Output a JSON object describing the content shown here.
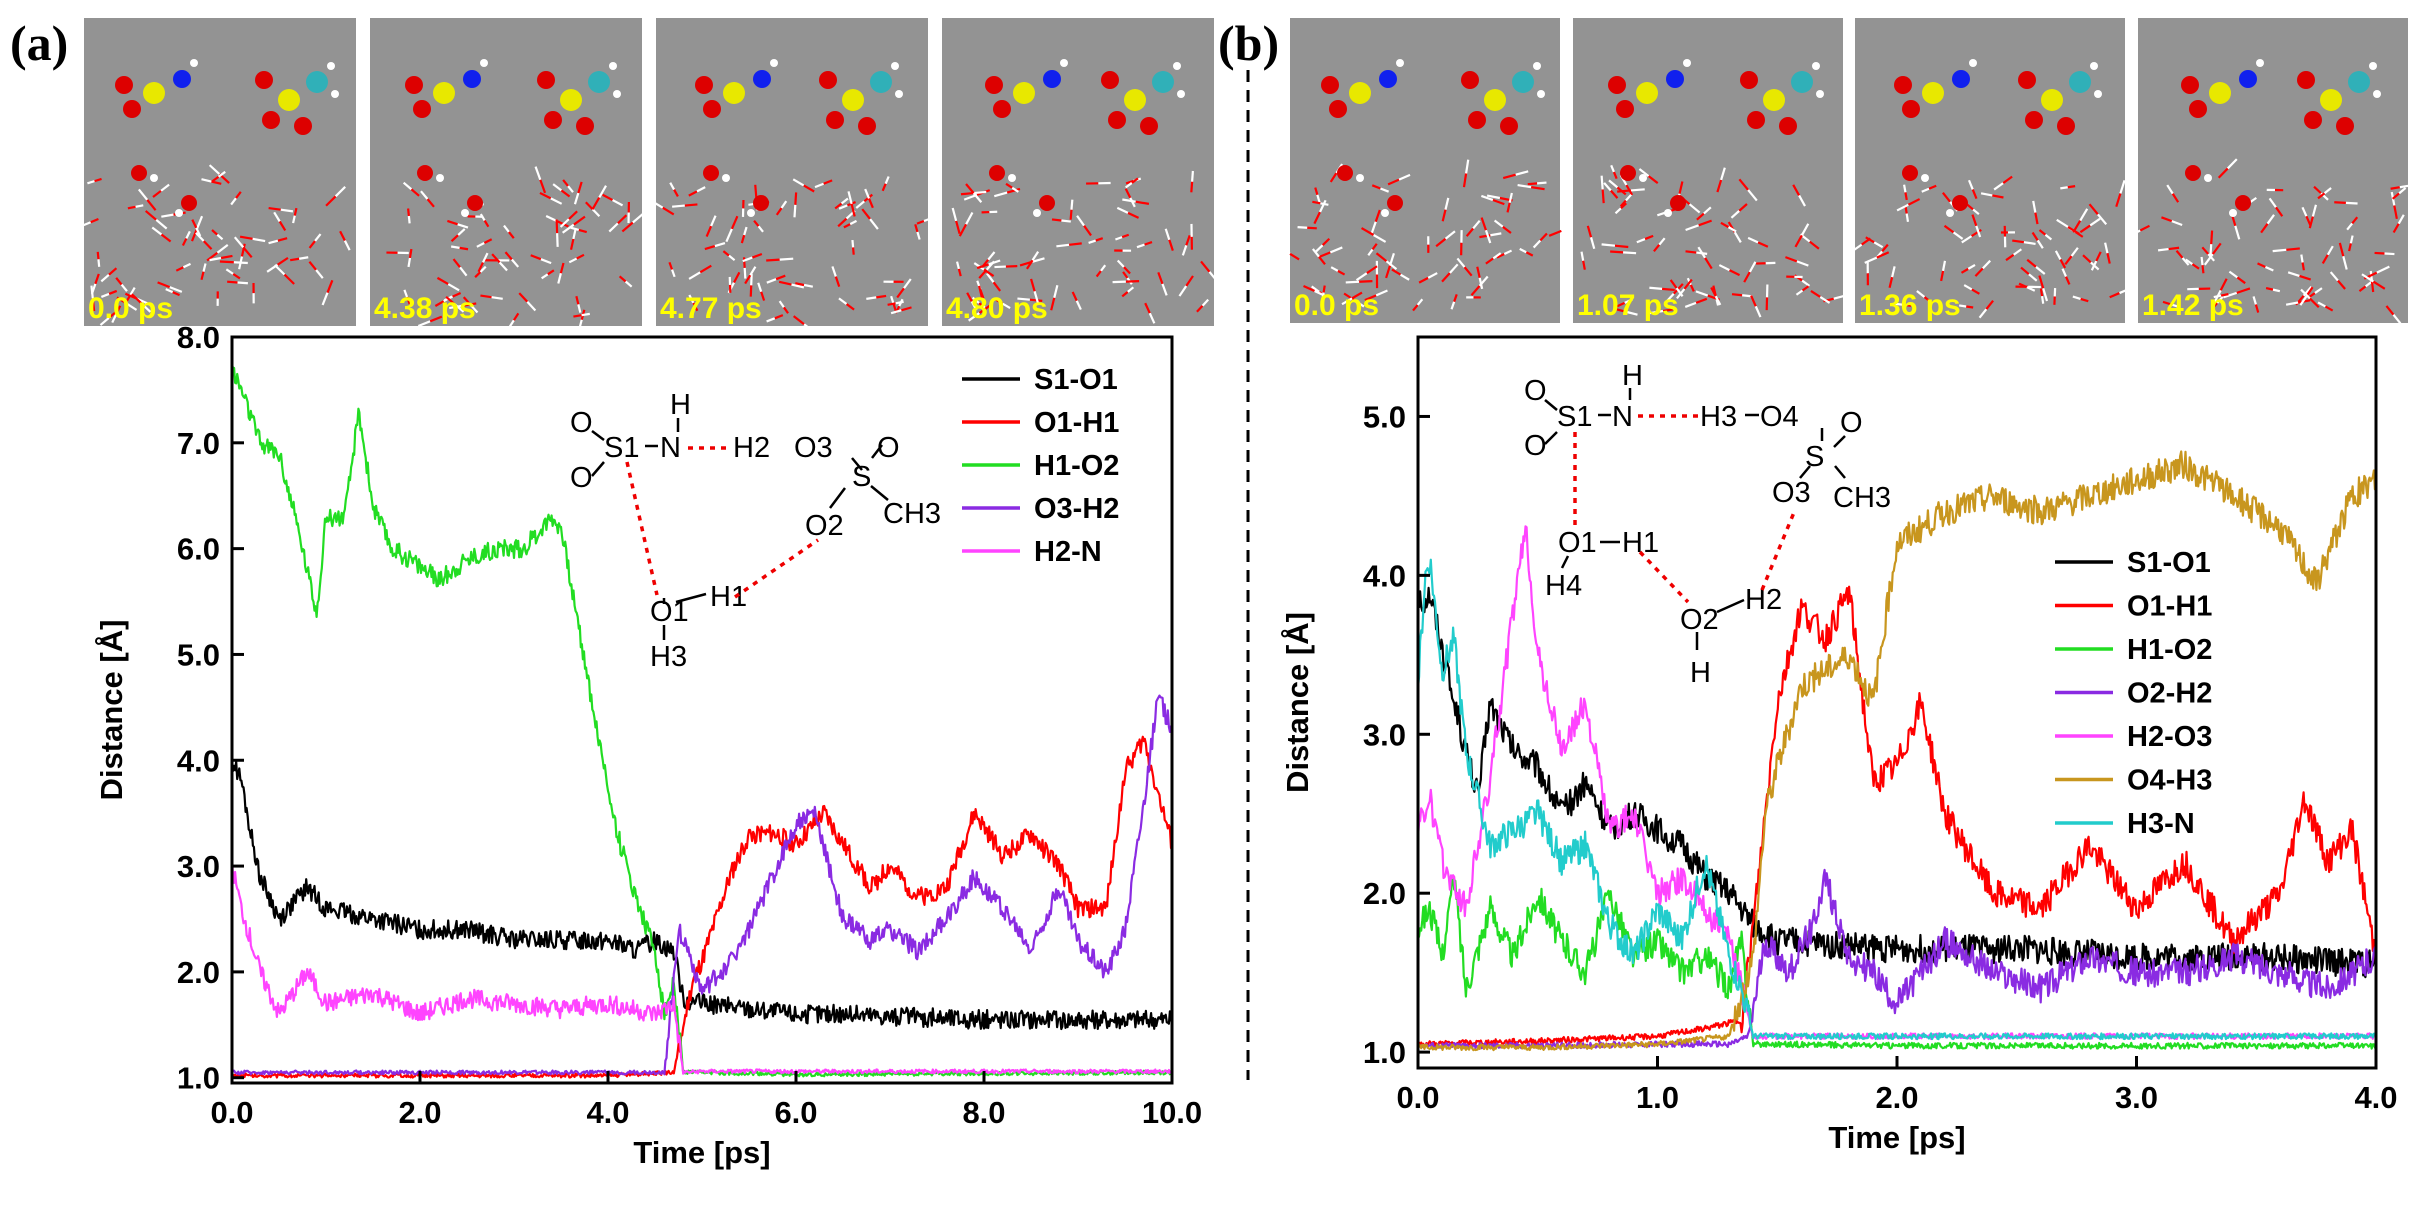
{
  "panel_a": {
    "letter": "(a)",
    "snapshots": [
      "0.0 ps",
      "4.38 ps",
      "4.77 ps",
      "4.80 ps"
    ],
    "scheme_labels": [
      "O",
      "O",
      "S1",
      "N",
      "H",
      "H2",
      "O3",
      "S",
      "O",
      "O2",
      "CH3",
      "O1",
      "H1",
      "H3"
    ]
  },
  "panel_b": {
    "letter": "(b)",
    "snapshots": [
      "0.0 ps",
      "1.07 ps",
      "1.36 ps",
      "1.42 ps"
    ],
    "scheme_labels": [
      "O",
      "O",
      "S1",
      "N",
      "H",
      "H3",
      "O4",
      "S",
      "O",
      "O3",
      "CH3",
      "O1",
      "H1",
      "H4",
      "O2",
      "H2",
      "H"
    ]
  },
  "colors": {
    "black": "#000000",
    "red": "#ff0000",
    "green": "#22dd22",
    "purple": "#8a2be2",
    "magenta": "#ff44ff",
    "gold": "#c8961e",
    "cyan": "#22cccc",
    "snapshot_bg": "#939393"
  },
  "chart_data": [
    {
      "type": "line",
      "title": "",
      "xlabel": "Time [ps]",
      "ylabel": "Distance [Å]",
      "xlim": [
        0,
        10
      ],
      "ylim": [
        0.95,
        8.0
      ],
      "xticks": [
        0,
        2,
        4,
        6,
        8,
        10
      ],
      "xtick_labels": [
        "0.0",
        "2.0",
        "4.0",
        "6.0",
        "8.0",
        "10.0"
      ],
      "yticks": [
        1,
        2,
        3,
        4,
        5,
        6,
        7,
        8
      ],
      "ytick_labels": [
        "1.0",
        "2.0",
        "3.0",
        "4.0",
        "5.0",
        "6.0",
        "7.0",
        "8.0"
      ],
      "legend_position": "top-right",
      "series": [
        {
          "name": "S1-O1",
          "color": "#000000",
          "x": [
            0,
            0.1,
            0.2,
            0.3,
            0.5,
            0.8,
            1.0,
            1.5,
            2.0,
            2.5,
            3.0,
            3.5,
            4.0,
            4.3,
            4.5,
            4.7,
            4.8,
            5.0,
            5.5,
            6.0,
            6.5,
            7.0,
            8.0,
            9.0,
            10.0
          ],
          "y": [
            4.0,
            3.8,
            3.3,
            2.9,
            2.5,
            2.8,
            2.6,
            2.5,
            2.4,
            2.4,
            2.3,
            2.3,
            2.3,
            2.2,
            2.3,
            2.2,
            1.75,
            1.7,
            1.65,
            1.6,
            1.6,
            1.58,
            1.55,
            1.55,
            1.55
          ]
        },
        {
          "name": "O1-H1",
          "color": "#ff0000",
          "x": [
            0,
            1,
            2,
            3,
            4,
            4.7,
            4.9,
            5.0,
            5.3,
            5.5,
            5.8,
            6.0,
            6.3,
            6.5,
            6.8,
            7.0,
            7.3,
            7.6,
            7.9,
            8.2,
            8.5,
            8.8,
            9.0,
            9.3,
            9.5,
            9.7,
            9.85,
            10.0
          ],
          "y": [
            1.02,
            1.02,
            1.02,
            1.02,
            1.02,
            1.05,
            1.9,
            2.1,
            2.9,
            3.3,
            3.3,
            3.2,
            3.5,
            3.2,
            2.8,
            3.0,
            2.7,
            2.8,
            3.5,
            3.1,
            3.3,
            3.0,
            2.6,
            2.6,
            3.9,
            4.2,
            3.7,
            3.2
          ]
        },
        {
          "name": "H1-O2",
          "color": "#22dd22",
          "x": [
            0,
            0.1,
            0.3,
            0.5,
            0.7,
            0.9,
            1.0,
            1.2,
            1.35,
            1.5,
            1.7,
            1.9,
            2.2,
            2.5,
            2.8,
            3.1,
            3.4,
            3.5,
            3.7,
            3.9,
            4.1,
            4.3,
            4.5,
            4.6,
            4.7,
            4.8,
            5.0,
            6.0,
            8.0,
            10.0
          ],
          "y": [
            7.7,
            7.5,
            7.0,
            6.9,
            6.2,
            5.4,
            6.3,
            6.3,
            7.3,
            6.4,
            6.0,
            5.9,
            5.7,
            5.9,
            6.0,
            6.0,
            6.3,
            6.2,
            5.2,
            4.2,
            3.3,
            2.7,
            2.2,
            1.6,
            1.9,
            1.05,
            1.05,
            1.03,
            1.04,
            1.05
          ]
        },
        {
          "name": "O3-H2",
          "color": "#8a2be2",
          "x": [
            0,
            2,
            4,
            4.6,
            4.75,
            4.85,
            5.0,
            5.3,
            5.5,
            5.8,
            6.0,
            6.2,
            6.5,
            6.8,
            7.0,
            7.3,
            7.6,
            7.9,
            8.2,
            8.5,
            8.8,
            9.0,
            9.3,
            9.5,
            9.7,
            9.85,
            10.0
          ],
          "y": [
            1.05,
            1.05,
            1.05,
            1.05,
            2.4,
            2.2,
            1.8,
            2.1,
            2.4,
            3.0,
            3.4,
            3.5,
            2.5,
            2.3,
            2.4,
            2.2,
            2.5,
            2.9,
            2.6,
            2.2,
            2.8,
            2.3,
            2.0,
            2.4,
            3.6,
            4.6,
            4.3
          ]
        },
        {
          "name": "H2-N",
          "color": "#ff44ff",
          "x": [
            0,
            0.1,
            0.3,
            0.5,
            0.8,
            1.0,
            1.5,
            2.0,
            2.5,
            3.0,
            3.5,
            4.0,
            4.5,
            4.7,
            4.8,
            5.0,
            6.0,
            8.0,
            10.0
          ],
          "y": [
            3.0,
            2.6,
            2.0,
            1.6,
            2.0,
            1.7,
            1.8,
            1.6,
            1.75,
            1.7,
            1.65,
            1.7,
            1.6,
            1.7,
            1.05,
            1.06,
            1.06,
            1.06,
            1.06
          ]
        }
      ]
    },
    {
      "type": "line",
      "title": "",
      "xlabel": "Time [ps]",
      "ylabel": "Distance [Å]",
      "xlim": [
        0,
        4
      ],
      "ylim": [
        0.9,
        5.5
      ],
      "xticks": [
        0,
        1,
        2,
        3,
        4
      ],
      "xtick_labels": [
        "0.0",
        "1.0",
        "2.0",
        "3.0",
        "4.0"
      ],
      "yticks": [
        1,
        2,
        3,
        4,
        5
      ],
      "ytick_labels": [
        "1.0",
        "2.0",
        "3.0",
        "4.0",
        "5.0"
      ],
      "legend_position": "center-right",
      "series": [
        {
          "name": "S1-O1",
          "color": "#000000",
          "x": [
            0,
            0.05,
            0.15,
            0.25,
            0.3,
            0.4,
            0.5,
            0.6,
            0.7,
            0.8,
            0.9,
            1.0,
            1.1,
            1.2,
            1.3,
            1.4,
            1.5,
            2.0,
            2.5,
            3.0,
            3.5,
            4.0
          ],
          "y": [
            3.8,
            3.9,
            3.2,
            2.6,
            3.2,
            2.9,
            2.8,
            2.5,
            2.7,
            2.4,
            2.5,
            2.4,
            2.3,
            2.1,
            2.0,
            1.8,
            1.7,
            1.65,
            1.65,
            1.6,
            1.6,
            1.55
          ]
        },
        {
          "name": "O1-H1",
          "color": "#ff0000",
          "x": [
            0,
            0.5,
            1.0,
            1.2,
            1.35,
            1.4,
            1.45,
            1.5,
            1.6,
            1.7,
            1.8,
            1.9,
            2.0,
            2.1,
            2.2,
            2.4,
            2.6,
            2.8,
            3.0,
            3.2,
            3.4,
            3.6,
            3.7,
            3.8,
            3.9,
            4.0
          ],
          "y": [
            1.05,
            1.07,
            1.1,
            1.15,
            1.2,
            1.8,
            2.5,
            3.2,
            3.8,
            3.6,
            3.9,
            2.7,
            2.8,
            3.2,
            2.5,
            2.0,
            1.9,
            2.3,
            1.9,
            2.2,
            1.7,
            2.0,
            2.6,
            2.2,
            2.4,
            1.6
          ]
        },
        {
          "name": "H1-O2",
          "color": "#22dd22",
          "x": [
            0,
            0.05,
            0.1,
            0.15,
            0.2,
            0.3,
            0.4,
            0.5,
            0.6,
            0.7,
            0.8,
            0.9,
            1.0,
            1.1,
            1.2,
            1.3,
            1.35,
            1.4,
            1.5,
            2.0,
            3.0,
            4.0
          ],
          "y": [
            1.8,
            1.9,
            1.6,
            2.1,
            1.4,
            1.9,
            1.6,
            2.0,
            1.7,
            1.5,
            2.0,
            1.6,
            1.7,
            1.5,
            1.6,
            1.4,
            1.7,
            1.05,
            1.05,
            1.04,
            1.04,
            1.04
          ]
        },
        {
          "name": "O2-H2",
          "color": "#8a2be2",
          "x": [
            0,
            0.5,
            1.0,
            1.3,
            1.38,
            1.45,
            1.55,
            1.65,
            1.7,
            1.8,
            1.9,
            2.0,
            2.2,
            2.4,
            2.6,
            2.8,
            3.0,
            3.2,
            3.4,
            3.6,
            3.8,
            4.0
          ],
          "y": [
            1.04,
            1.04,
            1.05,
            1.05,
            1.1,
            1.7,
            1.5,
            1.8,
            2.1,
            1.6,
            1.5,
            1.3,
            1.7,
            1.5,
            1.4,
            1.6,
            1.5,
            1.5,
            1.6,
            1.5,
            1.4,
            1.6
          ]
        },
        {
          "name": "H2-O3",
          "color": "#ff44ff",
          "x": [
            0,
            0.05,
            0.1,
            0.2,
            0.3,
            0.4,
            0.45,
            0.5,
            0.6,
            0.7,
            0.8,
            0.9,
            1.0,
            1.1,
            1.2,
            1.3,
            1.35,
            1.4,
            1.5,
            2.0,
            3.0,
            4.0
          ],
          "y": [
            2.4,
            2.6,
            2.2,
            1.9,
            2.7,
            3.8,
            4.3,
            3.5,
            2.9,
            3.2,
            2.4,
            2.5,
            2.0,
            2.1,
            1.9,
            1.7,
            1.4,
            1.1,
            1.1,
            1.1,
            1.1,
            1.1
          ]
        },
        {
          "name": "O4-H3",
          "color": "#c8961e",
          "x": [
            0,
            0.5,
            1.0,
            1.3,
            1.4,
            1.45,
            1.5,
            1.6,
            1.7,
            1.8,
            1.9,
            2.0,
            2.1,
            2.2,
            2.4,
            2.6,
            2.8,
            3.0,
            3.2,
            3.4,
            3.6,
            3.75,
            3.9,
            4.0
          ],
          "y": [
            1.03,
            1.03,
            1.05,
            1.1,
            1.6,
            2.5,
            2.8,
            3.3,
            3.4,
            3.5,
            3.2,
            4.2,
            4.3,
            4.4,
            4.5,
            4.4,
            4.5,
            4.6,
            4.7,
            4.5,
            4.3,
            3.95,
            4.5,
            4.6
          ]
        },
        {
          "name": "H3-N",
          "color": "#22cccc",
          "x": [
            0,
            0.03,
            0.05,
            0.1,
            0.15,
            0.2,
            0.3,
            0.4,
            0.5,
            0.6,
            0.7,
            0.8,
            0.9,
            1.0,
            1.1,
            1.2,
            1.3,
            1.35,
            1.4,
            1.5,
            2.0,
            3.0,
            4.0
          ],
          "y": [
            3.3,
            4.0,
            4.1,
            3.4,
            3.6,
            2.9,
            2.3,
            2.4,
            2.5,
            2.2,
            2.3,
            1.8,
            1.6,
            1.9,
            1.7,
            2.2,
            1.6,
            1.4,
            1.1,
            1.1,
            1.1,
            1.1,
            1.1
          ]
        }
      ]
    }
  ]
}
